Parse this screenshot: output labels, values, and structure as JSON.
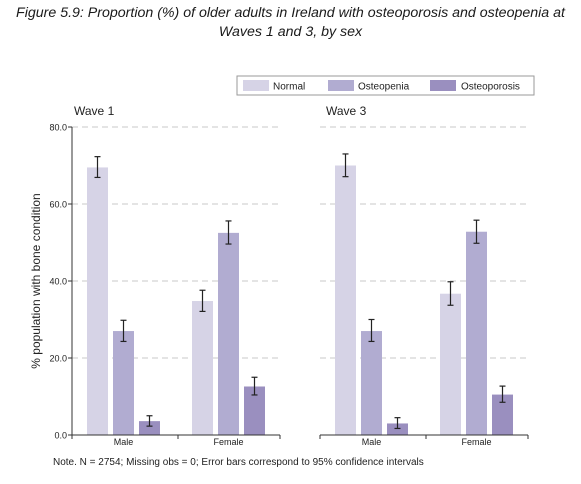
{
  "figure": {
    "title_line1": "Figure 5.9: Proportion (%) of older adults in Ireland with osteoporosis and osteopenia at",
    "title_line2": "Waves 1 and 3, by sex",
    "note": "Note. N = 2754; Missing obs = 0; Error bars correspond to 95% confidence intervals"
  },
  "colors": {
    "Normal": "#d6d3e6",
    "Osteopenia": "#b1acd1",
    "Osteoporosis": "#9a8fbf",
    "errorbar": "#222222",
    "grid": "#c8c8c8",
    "axis": "#333333"
  },
  "chart_data": [
    {
      "type": "bar",
      "title": "Wave 1",
      "categories": [
        "Male",
        "Female"
      ],
      "ylabel": "% population with bone condition",
      "ylim": [
        0,
        80
      ],
      "yticks": [
        "0.0",
        "20.0",
        "40.0",
        "60.0",
        "80.0"
      ],
      "grid": true,
      "legend": "top-right",
      "series": [
        {
          "name": "Normal",
          "values": [
            69.5,
            34.8
          ],
          "ci_low": [
            66.9,
            32.1
          ],
          "ci_high": [
            72.3,
            37.6
          ]
        },
        {
          "name": "Osteopenia",
          "values": [
            27.0,
            52.5
          ],
          "ci_low": [
            24.3,
            49.6
          ],
          "ci_high": [
            29.8,
            55.6
          ]
        },
        {
          "name": "Osteoporosis",
          "values": [
            3.6,
            12.6
          ],
          "ci_low": [
            2.3,
            10.4
          ],
          "ci_high": [
            5.0,
            15.0
          ]
        }
      ]
    },
    {
      "type": "bar",
      "title": "Wave 3",
      "categories": [
        "Male",
        "Female"
      ],
      "ylim": [
        0,
        80
      ],
      "grid": true,
      "legend": "top-right",
      "series": [
        {
          "name": "Normal",
          "values": [
            70.0,
            36.7
          ],
          "ci_low": [
            67.1,
            33.7
          ],
          "ci_high": [
            73.0,
            39.8
          ]
        },
        {
          "name": "Osteopenia",
          "values": [
            27.0,
            52.8
          ],
          "ci_low": [
            24.3,
            49.8
          ],
          "ci_high": [
            30.0,
            55.8
          ]
        },
        {
          "name": "Osteoporosis",
          "values": [
            3.0,
            10.5
          ],
          "ci_low": [
            1.7,
            8.5
          ],
          "ci_high": [
            4.5,
            12.7
          ]
        }
      ]
    }
  ]
}
